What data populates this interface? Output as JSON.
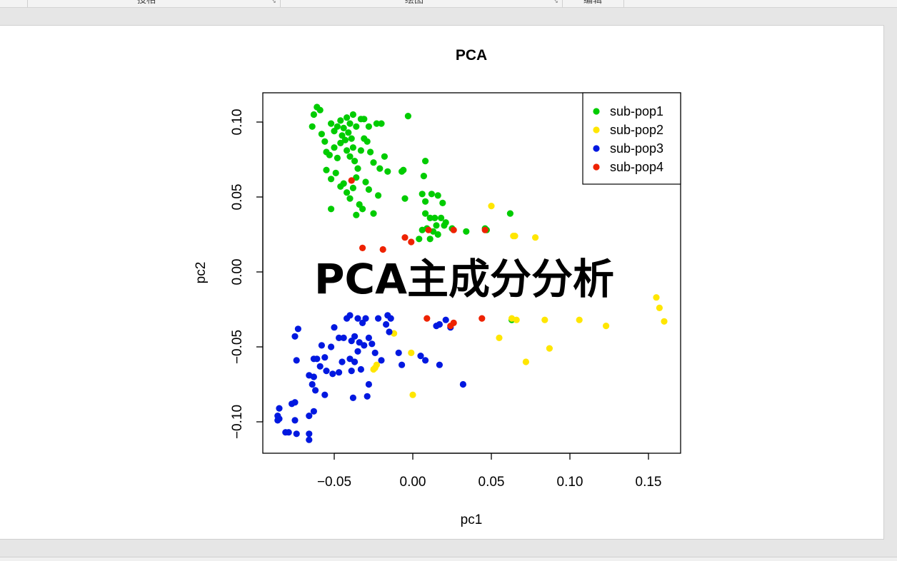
{
  "ribbon": {
    "groups": [
      "投相",
      "绘图",
      "编辑"
    ]
  },
  "overlay_text": "PCA主成分分析",
  "colors": {
    "sub-pop1": "#00cc00",
    "sub-pop2": "#ffe600",
    "sub-pop3": "#0018e0",
    "sub-pop4": "#ee2200"
  },
  "chart_data": {
    "type": "scatter",
    "title": "PCA",
    "xlabel": "pc1",
    "ylabel": "pc2",
    "xlim": [
      -0.095,
      0.17
    ],
    "ylim": [
      -0.12,
      0.12
    ],
    "xticks": [
      -0.05,
      0.0,
      0.05,
      0.1,
      0.15
    ],
    "xtick_labels": [
      "−0.05",
      "0.00",
      "0.05",
      "0.10",
      "0.15"
    ],
    "yticks": [
      -0.1,
      -0.05,
      0.0,
      0.05,
      0.1
    ],
    "ytick_labels": [
      "−0.10",
      "−0.05",
      "0.00",
      "0.05",
      "0.10"
    ],
    "legend_position": "top-right",
    "grid": false,
    "series": [
      {
        "name": "sub-pop1",
        "points": [
          [
            -0.061,
            0.11
          ],
          [
            -0.063,
            0.105
          ],
          [
            -0.059,
            0.108
          ],
          [
            -0.064,
            0.097
          ],
          [
            -0.058,
            0.092
          ],
          [
            -0.056,
            0.087
          ],
          [
            -0.052,
            0.099
          ],
          [
            -0.05,
            0.094
          ],
          [
            -0.048,
            0.097
          ],
          [
            -0.046,
            0.101
          ],
          [
            -0.044,
            0.096
          ],
          [
            -0.042,
            0.103
          ],
          [
            -0.04,
            0.099
          ],
          [
            -0.038,
            0.105
          ],
          [
            -0.045,
            0.091
          ],
          [
            -0.043,
            0.088
          ],
          [
            -0.041,
            0.093
          ],
          [
            -0.039,
            0.089
          ],
          [
            -0.036,
            0.097
          ],
          [
            -0.033,
            0.102
          ],
          [
            -0.031,
            0.102
          ],
          [
            -0.028,
            0.097
          ],
          [
            -0.023,
            0.099
          ],
          [
            -0.02,
            0.099
          ],
          [
            -0.003,
            0.104
          ],
          [
            -0.055,
            0.08
          ],
          [
            -0.053,
            0.078
          ],
          [
            -0.05,
            0.083
          ],
          [
            -0.048,
            0.076
          ],
          [
            -0.046,
            0.086
          ],
          [
            -0.042,
            0.081
          ],
          [
            -0.04,
            0.077
          ],
          [
            -0.038,
            0.083
          ],
          [
            -0.037,
            0.074
          ],
          [
            -0.035,
            0.069
          ],
          [
            -0.033,
            0.081
          ],
          [
            -0.031,
            0.089
          ],
          [
            -0.029,
            0.087
          ],
          [
            -0.027,
            0.08
          ],
          [
            -0.025,
            0.073
          ],
          [
            -0.021,
            0.069
          ],
          [
            -0.018,
            0.077
          ],
          [
            -0.016,
            0.067
          ],
          [
            -0.055,
            0.068
          ],
          [
            -0.052,
            0.062
          ],
          [
            -0.049,
            0.066
          ],
          [
            -0.046,
            0.057
          ],
          [
            -0.044,
            0.059
          ],
          [
            -0.042,
            0.053
          ],
          [
            -0.04,
            0.049
          ],
          [
            -0.038,
            0.056
          ],
          [
            -0.036,
            0.063
          ],
          [
            -0.034,
            0.045
          ],
          [
            -0.032,
            0.042
          ],
          [
            -0.03,
            0.06
          ],
          [
            -0.028,
            0.055
          ],
          [
            -0.025,
            0.039
          ],
          [
            -0.022,
            0.051
          ],
          [
            -0.052,
            0.042
          ],
          [
            -0.036,
            0.038
          ],
          [
            -0.007,
            0.067
          ],
          [
            -0.006,
            0.068
          ],
          [
            0.008,
            0.074
          ],
          [
            0.007,
            0.064
          ],
          [
            -0.005,
            0.049
          ],
          [
            0.006,
            0.052
          ],
          [
            0.012,
            0.052
          ],
          [
            0.016,
            0.051
          ],
          [
            0.019,
            0.046
          ],
          [
            0.008,
            0.047
          ],
          [
            0.008,
            0.039
          ],
          [
            0.011,
            0.036
          ],
          [
            0.014,
            0.036
          ],
          [
            0.018,
            0.036
          ],
          [
            0.021,
            0.033
          ],
          [
            0.015,
            0.031
          ],
          [
            0.009,
            0.029
          ],
          [
            0.013,
            0.027
          ],
          [
            0.006,
            0.028
          ],
          [
            0.004,
            0.022
          ],
          [
            0.011,
            0.022
          ],
          [
            0.016,
            0.025
          ],
          [
            0.02,
            0.031
          ],
          [
            0.025,
            0.029
          ],
          [
            0.034,
            0.027
          ],
          [
            0.046,
            0.029
          ],
          [
            0.047,
            0.028
          ],
          [
            0.062,
            0.039
          ],
          [
            0.063,
            -0.032
          ]
        ]
      },
      {
        "name": "sub-pop2",
        "points": [
          [
            0.05,
            0.044
          ],
          [
            0.064,
            0.024
          ],
          [
            0.065,
            0.024
          ],
          [
            0.078,
            0.023
          ],
          [
            0.155,
            -0.017
          ],
          [
            0.157,
            -0.024
          ],
          [
            0.16,
            -0.033
          ],
          [
            0.063,
            -0.031
          ],
          [
            0.066,
            -0.032
          ],
          [
            0.084,
            -0.032
          ],
          [
            0.106,
            -0.032
          ],
          [
            0.123,
            -0.036
          ],
          [
            0.055,
            -0.044
          ],
          [
            0.087,
            -0.051
          ],
          [
            0.072,
            -0.06
          ],
          [
            -0.012,
            -0.041
          ],
          [
            -0.023,
            -0.062
          ],
          [
            -0.024,
            -0.064
          ],
          [
            -0.025,
            -0.065
          ],
          [
            -0.001,
            -0.054
          ],
          [
            0.0,
            -0.082
          ]
        ]
      },
      {
        "name": "sub-pop3",
        "points": [
          [
            -0.042,
            -0.031
          ],
          [
            -0.04,
            -0.029
          ],
          [
            -0.035,
            -0.031
          ],
          [
            -0.032,
            -0.034
          ],
          [
            -0.03,
            -0.031
          ],
          [
            -0.022,
            -0.031
          ],
          [
            -0.016,
            -0.029
          ],
          [
            -0.014,
            -0.031
          ],
          [
            -0.017,
            -0.035
          ],
          [
            -0.015,
            -0.04
          ],
          [
            -0.05,
            -0.037
          ],
          [
            -0.052,
            -0.05
          ],
          [
            -0.047,
            -0.044
          ],
          [
            -0.044,
            -0.044
          ],
          [
            -0.039,
            -0.046
          ],
          [
            -0.037,
            -0.043
          ],
          [
            -0.034,
            -0.047
          ],
          [
            -0.031,
            -0.049
          ],
          [
            -0.028,
            -0.044
          ],
          [
            -0.026,
            -0.048
          ],
          [
            -0.024,
            -0.054
          ],
          [
            -0.035,
            -0.053
          ],
          [
            -0.04,
            -0.058
          ],
          [
            -0.045,
            -0.06
          ],
          [
            -0.058,
            -0.049
          ],
          [
            -0.056,
            -0.057
          ],
          [
            -0.061,
            -0.058
          ],
          [
            -0.063,
            -0.058
          ],
          [
            -0.059,
            -0.063
          ],
          [
            -0.055,
            -0.066
          ],
          [
            -0.051,
            -0.068
          ],
          [
            -0.047,
            -0.067
          ],
          [
            -0.039,
            -0.066
          ],
          [
            -0.037,
            -0.06
          ],
          [
            -0.033,
            -0.065
          ],
          [
            -0.028,
            -0.075
          ],
          [
            -0.02,
            -0.059
          ],
          [
            -0.009,
            -0.054
          ],
          [
            -0.007,
            -0.062
          ],
          [
            0.005,
            -0.056
          ],
          [
            0.008,
            -0.059
          ],
          [
            0.017,
            -0.062
          ],
          [
            0.015,
            -0.036
          ],
          [
            0.017,
            -0.035
          ],
          [
            0.021,
            -0.032
          ],
          [
            0.024,
            -0.037
          ],
          [
            0.032,
            -0.075
          ],
          [
            -0.075,
            -0.043
          ],
          [
            -0.073,
            -0.038
          ],
          [
            -0.074,
            -0.059
          ],
          [
            -0.066,
            -0.069
          ],
          [
            -0.064,
            -0.075
          ],
          [
            -0.062,
            -0.079
          ],
          [
            -0.063,
            -0.07
          ],
          [
            -0.056,
            -0.082
          ],
          [
            -0.038,
            -0.084
          ],
          [
            -0.029,
            -0.083
          ],
          [
            -0.085,
            -0.091
          ],
          [
            -0.086,
            -0.096
          ],
          [
            -0.085,
            -0.098
          ],
          [
            -0.086,
            -0.099
          ],
          [
            -0.077,
            -0.088
          ],
          [
            -0.075,
            -0.087
          ],
          [
            -0.066,
            -0.096
          ],
          [
            -0.063,
            -0.093
          ],
          [
            -0.075,
            -0.099
          ],
          [
            -0.081,
            -0.107
          ],
          [
            -0.079,
            -0.107
          ],
          [
            -0.074,
            -0.108
          ],
          [
            -0.066,
            -0.108
          ],
          [
            -0.066,
            -0.112
          ]
        ]
      },
      {
        "name": "sub-pop4",
        "points": [
          [
            -0.039,
            0.061
          ],
          [
            -0.032,
            0.016
          ],
          [
            -0.019,
            0.015
          ],
          [
            -0.005,
            0.023
          ],
          [
            -0.001,
            0.02
          ],
          [
            0.01,
            0.028
          ],
          [
            0.026,
            0.028
          ],
          [
            0.046,
            0.028
          ],
          [
            0.009,
            -0.031
          ],
          [
            0.024,
            -0.036
          ],
          [
            0.026,
            -0.034
          ],
          [
            0.044,
            -0.031
          ]
        ]
      }
    ]
  }
}
